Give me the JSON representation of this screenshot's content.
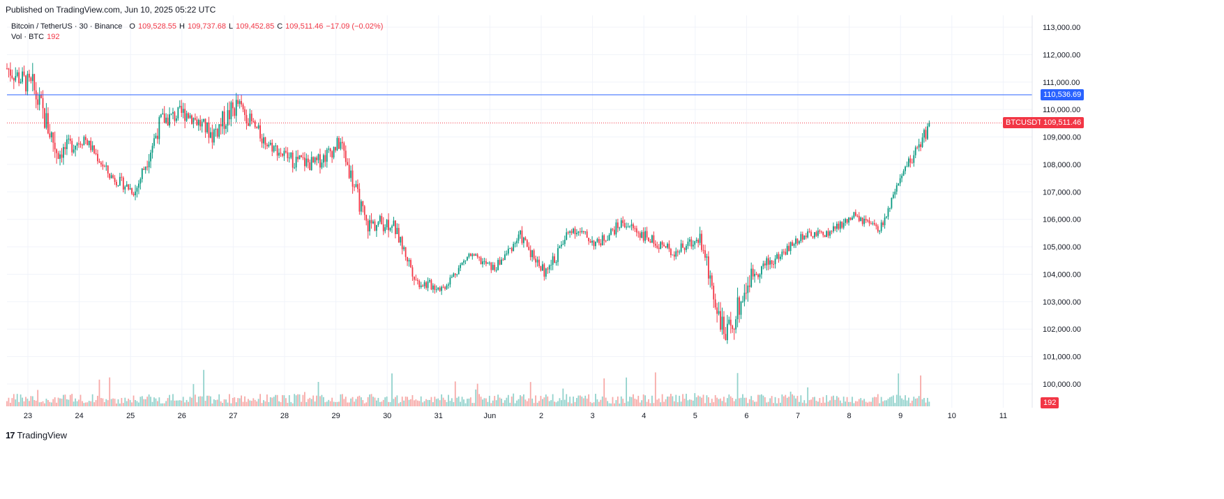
{
  "published": "Published on TradingView.com, Jun 10, 2025 05:22 UTC",
  "legend": {
    "symbol": "Bitcoin / TetherUS · 30 · Binance",
    "o_label": "O",
    "o_value": "109,528.55",
    "h_label": "H",
    "h_value": "109,737.68",
    "l_label": "L",
    "l_value": "109,452.85",
    "c_label": "C",
    "c_value": "109,511.46",
    "change": "−17.09 (−0.02%)",
    "vol_label": "Vol · BTC",
    "vol_value": "192"
  },
  "tags": {
    "hline_price": "110,536.69",
    "symbol_tag": "BTCUSDT",
    "last_price": "109,511.46",
    "vol_tag": "192"
  },
  "footer": {
    "logo": "17",
    "brand": "TradingView"
  },
  "colors": {
    "up": "#089981",
    "down": "#f23645",
    "hline": "#2962ff",
    "grid": "#f0f3fa",
    "up_vol": "#92d2cc",
    "down_vol": "#f7a9a7"
  },
  "chart_data": {
    "type": "candlestick",
    "y_ticks": [
      "113,000.00",
      "112,000.00",
      "111,000.00",
      "110,000.00",
      "109,000.00",
      "108,000.00",
      "107,000.00",
      "106,000.00",
      "105,000.00",
      "104,000.00",
      "103,000.00",
      "102,000.00",
      "101,000.00",
      "100,000.00"
    ],
    "x_ticks": [
      "23",
      "24",
      "25",
      "26",
      "27",
      "28",
      "29",
      "30",
      "31",
      "Jun",
      "2",
      "3",
      "4",
      "5",
      "6",
      "7",
      "8",
      "9",
      "10",
      "11"
    ],
    "ylim": [
      99500,
      113300
    ],
    "horizontal_line": 110536.69,
    "last_price": 109511.46,
    "close_series": [
      {
        "t": "23",
        "close": 111500,
        "high": 112000,
        "low": 110700
      },
      {
        "t": "23.5",
        "close": 110800,
        "high": 111300,
        "low": 107300
      },
      {
        "t": "24",
        "close": 108400,
        "high": 109800,
        "low": 106800
      },
      {
        "t": "24.5",
        "close": 109000,
        "high": 109500,
        "low": 108300
      },
      {
        "t": "25",
        "close": 107600,
        "high": 108700,
        "low": 107200
      },
      {
        "t": "25.5",
        "close": 107000,
        "high": 107800,
        "low": 106600
      },
      {
        "t": "26",
        "close": 109600,
        "high": 110000,
        "low": 106800
      },
      {
        "t": "26.5",
        "close": 109900,
        "high": 110400,
        "low": 109300
      },
      {
        "t": "27",
        "close": 109100,
        "high": 110500,
        "low": 107500
      },
      {
        "t": "27.5",
        "close": 110200,
        "high": 110700,
        "low": 108200
      },
      {
        "t": "28",
        "close": 108900,
        "high": 109700,
        "low": 108400
      },
      {
        "t": "28.5",
        "close": 108200,
        "high": 109200,
        "low": 107300
      },
      {
        "t": "29",
        "close": 108000,
        "high": 109100,
        "low": 107000
      },
      {
        "t": "29.5",
        "close": 108800,
        "high": 108900,
        "low": 107200
      },
      {
        "t": "30",
        "close": 105800,
        "high": 107300,
        "low": 104600
      },
      {
        "t": "30.5",
        "close": 105900,
        "high": 106100,
        "low": 104500
      },
      {
        "t": "31",
        "close": 103700,
        "high": 104900,
        "low": 103300
      },
      {
        "t": "31.5",
        "close": 103500,
        "high": 103900,
        "low": 103100
      },
      {
        "t": "Jun",
        "close": 104700,
        "high": 105000,
        "low": 103800
      },
      {
        "t": "1.5",
        "close": 104200,
        "high": 104800,
        "low": 103800
      },
      {
        "t": "2",
        "close": 105400,
        "high": 105800,
        "low": 104500
      },
      {
        "t": "2.5",
        "close": 104000,
        "high": 105300,
        "low": 103700
      },
      {
        "t": "3",
        "close": 105700,
        "high": 106500,
        "low": 104700
      },
      {
        "t": "3.5",
        "close": 105100,
        "high": 105700,
        "low": 104700
      },
      {
        "t": "4",
        "close": 105900,
        "high": 106700,
        "low": 105000
      },
      {
        "t": "4.5",
        "close": 105300,
        "high": 105900,
        "low": 104800
      },
      {
        "t": "5",
        "close": 104800,
        "high": 105600,
        "low": 104200
      },
      {
        "t": "5.5",
        "close": 105300,
        "high": 105900,
        "low": 104600
      },
      {
        "t": "6",
        "close": 101600,
        "high": 104500,
        "low": 100400
      },
      {
        "t": "6.5",
        "close": 104000,
        "high": 104900,
        "low": 102600
      },
      {
        "t": "7",
        "close": 104600,
        "high": 105300,
        "low": 103900
      },
      {
        "t": "7.5",
        "close": 105400,
        "high": 105800,
        "low": 104800
      },
      {
        "t": "8",
        "close": 105500,
        "high": 105900,
        "low": 105000
      },
      {
        "t": "8.5",
        "close": 106100,
        "high": 106500,
        "low": 105000
      },
      {
        "t": "9",
        "close": 105600,
        "high": 106100,
        "low": 105300
      },
      {
        "t": "9.5",
        "close": 107800,
        "high": 108500,
        "low": 106900
      },
      {
        "t": "10",
        "close": 109511,
        "high": 110537,
        "low": 108800
      }
    ]
  }
}
